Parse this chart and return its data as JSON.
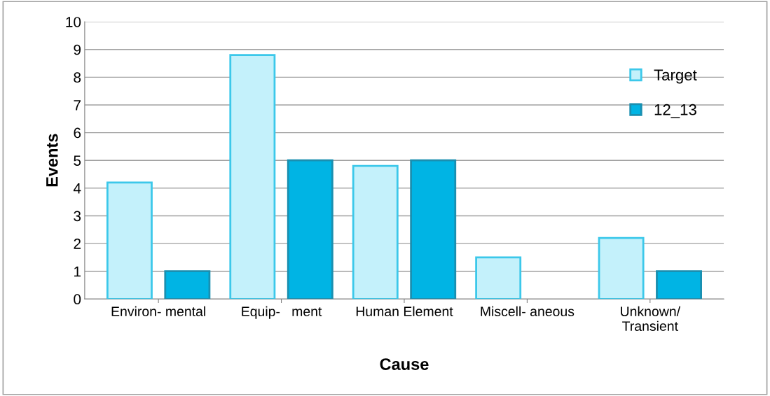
{
  "chart_data": {
    "type": "bar",
    "xlabel": "Cause",
    "ylabel": "Events",
    "categories": [
      "Environ- mental",
      "Equip-   ment",
      "Human Element",
      "Miscell- aneous",
      "Unknown/\nTransient"
    ],
    "series": [
      {
        "name": "Target",
        "color": "#c4f1fb",
        "values": [
          4.2,
          8.8,
          4.8,
          1.5,
          2.2
        ]
      },
      {
        "name": "12_13",
        "color": "#00b4e4",
        "values": [
          1,
          5,
          5,
          null,
          1
        ]
      }
    ],
    "ylim": [
      0,
      10
    ],
    "yticks": [
      0,
      1,
      2,
      3,
      4,
      5,
      6,
      7,
      8,
      9,
      10
    ],
    "grid": "y",
    "legend": "top right"
  }
}
